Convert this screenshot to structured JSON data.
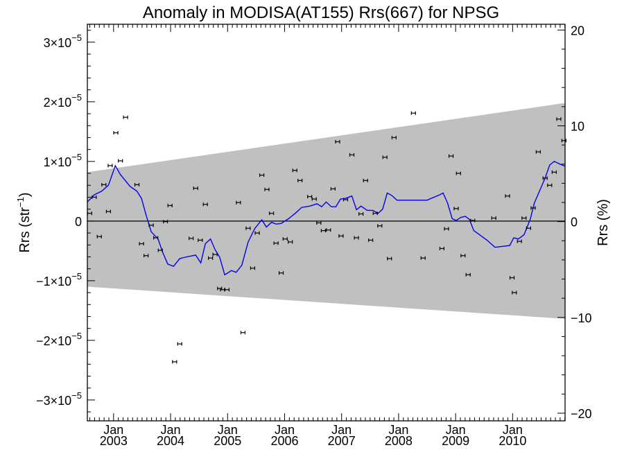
{
  "chart_data": {
    "type": "scatter",
    "title": "Anomaly in MODISA(AT155) Rrs(667) for NPSG",
    "ylabel": "Rrs (str⁻¹)",
    "ylabel_base": "Rrs (str",
    "ylabel_sup": "−1",
    "ylabel_close": ")",
    "y2label": "Rrs (%)",
    "xlim": [
      2002.54,
      2010.92
    ],
    "ylim": [
      -3.35e-05,
      3.3e-05
    ],
    "y2lim": [
      -20.8,
      20.6
    ],
    "grid": false,
    "colors": {
      "line": "#0000ee",
      "band": "#c0c0c0",
      "points": "#000000",
      "zero": "#000000"
    },
    "y_ticks": [
      {
        "value": 3e-05,
        "mantissa": "3",
        "exp": "−5"
      },
      {
        "value": 2e-05,
        "mantissa": "2",
        "exp": "−5"
      },
      {
        "value": 1e-05,
        "mantissa": "1",
        "exp": "−5"
      },
      {
        "value": 0,
        "plain": "0"
      },
      {
        "value": -1e-05,
        "mantissa": "−1",
        "exp": "−5"
      },
      {
        "value": -2e-05,
        "mantissa": "−2",
        "exp": "−5"
      },
      {
        "value": -3e-05,
        "mantissa": "−3",
        "exp": "−5"
      }
    ],
    "y2_ticks": [
      {
        "value": 20,
        "label": "20"
      },
      {
        "value": 10,
        "label": "10"
      },
      {
        "value": 0,
        "label": "0"
      },
      {
        "value": -10,
        "label": "−10"
      },
      {
        "value": -20,
        "label": "−20"
      }
    ],
    "x_ticks": [
      {
        "value": 2003.0,
        "month": "Jan",
        "year": "2003"
      },
      {
        "value": 2004.0,
        "month": "Jan",
        "year": "2004"
      },
      {
        "value": 2005.0,
        "month": "Jan",
        "year": "2005"
      },
      {
        "value": 2006.0,
        "month": "Jan",
        "year": "2006"
      },
      {
        "value": 2007.0,
        "month": "Jan",
        "year": "2007"
      },
      {
        "value": 2008.0,
        "month": "Jan",
        "year": "2008"
      },
      {
        "value": 2009.0,
        "month": "Jan",
        "year": "2009"
      },
      {
        "value": 2010.0,
        "month": "Jan",
        "year": "2010"
      }
    ],
    "band": {
      "x": [
        2002.54,
        2010.92
      ],
      "upper": [
        8.2e-06,
        1.98e-05
      ],
      "lower": [
        -1.1e-05,
        -1.64e-05
      ]
    },
    "points": [
      [
        2002.58,
        1.3e-06
      ],
      [
        2002.66,
        4e-06
      ],
      [
        2002.75,
        -2.6e-06
      ],
      [
        2002.83,
        6.1e-06
      ],
      [
        2002.91,
        1.6e-06
      ],
      [
        2002.94,
        9.3e-06
      ],
      [
        2003.04,
        1.48e-05
      ],
      [
        2003.12,
        1.01e-05
      ],
      [
        2003.21,
        1.74e-05
      ],
      [
        2003.41,
        6.1e-06
      ],
      [
        2003.49,
        -3.8e-06
      ],
      [
        2003.57,
        -5.8e-06
      ],
      [
        2003.66,
        -7e-07
      ],
      [
        2003.74,
        -2.8e-06
      ],
      [
        2003.82,
        -4.9e-06
      ],
      [
        2003.91,
        -1e-07
      ],
      [
        2003.99,
        2.6e-06
      ],
      [
        2004.07,
        -2.36e-05
      ],
      [
        2004.16,
        -2.06e-05
      ],
      [
        2004.36,
        -2.9e-06
      ],
      [
        2004.44,
        5.5e-06
      ],
      [
        2004.52,
        -3.2e-06
      ],
      [
        2004.61,
        2.8e-06
      ],
      [
        2004.7,
        -6.2e-06
      ],
      [
        2004.78,
        -5.6e-06
      ],
      [
        2004.86,
        -1.13e-05
      ],
      [
        2004.91,
        -1.15e-05
      ],
      [
        2004.99,
        -1.15e-05
      ],
      [
        2005.19,
        3.1e-06
      ],
      [
        2005.27,
        -1.87e-05
      ],
      [
        2005.36,
        -1.2e-06
      ],
      [
        2005.44,
        -7.9e-06
      ],
      [
        2005.52,
        -2e-06
      ],
      [
        2005.6,
        7.7e-06
      ],
      [
        2005.69,
        5.3e-06
      ],
      [
        2005.77,
        1.3e-06
      ],
      [
        2005.85,
        -3.7e-06
      ],
      [
        2005.94,
        -8.7e-06
      ],
      [
        2006.01,
        -3e-06
      ],
      [
        2006.1,
        -3.5e-06
      ],
      [
        2006.18,
        8.5e-06
      ],
      [
        2006.27,
        6.8e-06
      ],
      [
        2006.44,
        4.1e-06
      ],
      [
        2006.52,
        3.7e-06
      ],
      [
        2006.6,
        -3e-07
      ],
      [
        2006.68,
        -1.6e-06
      ],
      [
        2006.77,
        -1.5e-06
      ],
      [
        2006.85,
        5.4e-06
      ],
      [
        2006.93,
        1.33e-05
      ],
      [
        2006.99,
        -2.5e-06
      ],
      [
        2007.07,
        3.6e-06
      ],
      [
        2007.18,
        1.11e-05
      ],
      [
        2007.26,
        -2.8e-06
      ],
      [
        2007.34,
        1.2e-06
      ],
      [
        2007.42,
        6.8e-06
      ],
      [
        2007.51,
        -3.2e-06
      ],
      [
        2007.59,
        1.3e-06
      ],
      [
        2007.67,
        -8e-07
      ],
      [
        2007.76,
        1.07e-05
      ],
      [
        2007.84,
        -6.3e-06
      ],
      [
        2007.92,
        1.4e-05
      ],
      [
        2008.26,
        1.81e-05
      ],
      [
        2008.43,
        -6.2e-06
      ],
      [
        2008.76,
        -4.6e-06
      ],
      [
        2008.84,
        -1.3e-06
      ],
      [
        2008.92,
        1.09e-05
      ],
      [
        2009.01,
        2.1e-06
      ],
      [
        2009.05,
        8e-06
      ],
      [
        2009.13,
        -5.8e-06
      ],
      [
        2009.22,
        -9e-06
      ],
      [
        2009.3,
        1e-07
      ],
      [
        2009.67,
        5e-07
      ],
      [
        2009.91,
        4.2e-06
      ],
      [
        2009.99,
        -9.5e-06
      ],
      [
        2010.03,
        -1.2e-05
      ],
      [
        2010.12,
        -3.4e-06
      ],
      [
        2010.2,
        5e-07
      ],
      [
        2010.28,
        -1.2e-06
      ],
      [
        2010.36,
        2.2e-06
      ],
      [
        2010.45,
        1.16e-05
      ],
      [
        2010.57,
        7.2e-06
      ],
      [
        2010.65,
        6e-06
      ],
      [
        2010.73,
        8.2e-06
      ],
      [
        2010.81,
        1.71e-05
      ],
      [
        2010.9,
        1.35e-05
      ]
    ],
    "line": [
      [
        2002.54,
        3.2e-06
      ],
      [
        2002.66,
        4.4e-06
      ],
      [
        2002.79,
        5e-06
      ],
      [
        2002.91,
        6e-06
      ],
      [
        2003.03,
        9.3e-06
      ],
      [
        2003.12,
        7.8e-06
      ],
      [
        2003.29,
        5.8e-06
      ],
      [
        2003.41,
        5e-06
      ],
      [
        2003.49,
        3.8e-06
      ],
      [
        2003.57,
        1e-06
      ],
      [
        2003.66,
        -1.8e-06
      ],
      [
        2003.78,
        -3e-06
      ],
      [
        2003.86,
        -5.2e-06
      ],
      [
        2003.95,
        -7.2e-06
      ],
      [
        2004.05,
        -7.6e-06
      ],
      [
        2004.16,
        -6.3e-06
      ],
      [
        2004.28,
        -6e-06
      ],
      [
        2004.44,
        -5.7e-06
      ],
      [
        2004.53,
        -7e-06
      ],
      [
        2004.61,
        -3.8e-06
      ],
      [
        2004.7,
        -3e-06
      ],
      [
        2004.78,
        -4.8e-06
      ],
      [
        2004.86,
        -6e-06
      ],
      [
        2004.95,
        -9e-06
      ],
      [
        2005.07,
        -8.3e-06
      ],
      [
        2005.15,
        -8.6e-06
      ],
      [
        2005.25,
        -7.4e-06
      ],
      [
        2005.36,
        -3.5e-06
      ],
      [
        2005.48,
        -1.2e-06
      ],
      [
        2005.6,
        2e-07
      ],
      [
        2005.68,
        -1e-06
      ],
      [
        2005.77,
        -2e-07
      ],
      [
        2005.85,
        -5e-07
      ],
      [
        2005.94,
        -4e-07
      ],
      [
        2006.07,
        4e-07
      ],
      [
        2006.2,
        1.4e-06
      ],
      [
        2006.3,
        2.3e-06
      ],
      [
        2006.44,
        2.5e-06
      ],
      [
        2006.57,
        2.9e-06
      ],
      [
        2006.65,
        2.4e-06
      ],
      [
        2006.73,
        3.2e-06
      ],
      [
        2006.82,
        2.4e-06
      ],
      [
        2006.9,
        2.4e-06
      ],
      [
        2006.98,
        3.7e-06
      ],
      [
        2007.07,
        3.8e-06
      ],
      [
        2007.18,
        4.2e-06
      ],
      [
        2007.26,
        1.9e-06
      ],
      [
        2007.34,
        2.5e-06
      ],
      [
        2007.45,
        1.8e-06
      ],
      [
        2007.55,
        1.8e-06
      ],
      [
        2007.64,
        1.3e-06
      ],
      [
        2007.72,
        2e-06
      ],
      [
        2007.8,
        4.7e-06
      ],
      [
        2007.88,
        4.3e-06
      ],
      [
        2007.97,
        3.5e-06
      ],
      [
        2008.12,
        3.5e-06
      ],
      [
        2008.28,
        3.5e-06
      ],
      [
        2008.5,
        3.5e-06
      ],
      [
        2008.72,
        4.4e-06
      ],
      [
        2008.78,
        4.7e-06
      ],
      [
        2008.86,
        3e-06
      ],
      [
        2008.94,
        4e-07
      ],
      [
        2009.01,
        1e-07
      ],
      [
        2009.09,
        6e-07
      ],
      [
        2009.17,
        8e-07
      ],
      [
        2009.24,
        3e-07
      ],
      [
        2009.32,
        -1.6e-06
      ],
      [
        2009.55,
        -3.2e-06
      ],
      [
        2009.69,
        -4.4e-06
      ],
      [
        2009.95,
        -4.1e-06
      ],
      [
        2010.02,
        -2.8e-06
      ],
      [
        2010.1,
        -3e-06
      ],
      [
        2010.2,
        -2.3e-06
      ],
      [
        2010.31,
        3e-07
      ],
      [
        2010.38,
        3e-06
      ],
      [
        2010.48,
        5.2e-06
      ],
      [
        2010.57,
        7.2e-06
      ],
      [
        2010.65,
        9.4e-06
      ],
      [
        2010.73,
        1e-05
      ],
      [
        2010.82,
        9.6e-06
      ],
      [
        2010.92,
        9.2e-06
      ]
    ]
  }
}
